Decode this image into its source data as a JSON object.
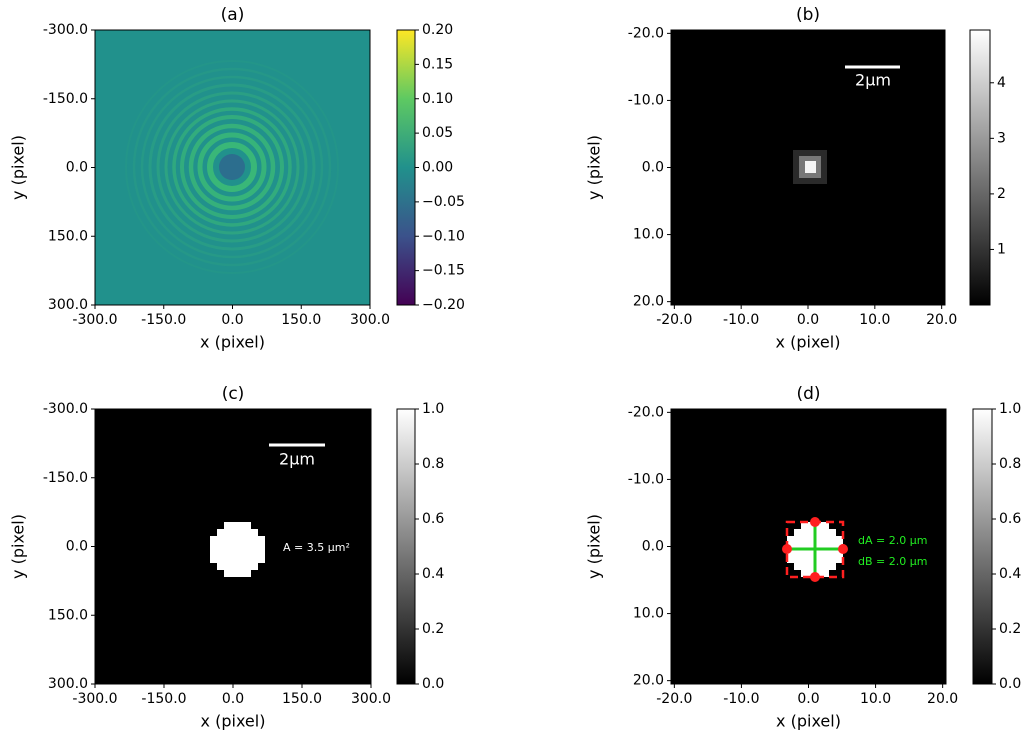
{
  "chart_data": [
    {
      "type": "image",
      "title": "(a)",
      "xlabel": "x (pixel)",
      "ylabel": "y (pixel)",
      "yinvert": true,
      "colormap": "viridis",
      "xlim": [
        -300,
        300
      ],
      "ylim": [
        -300,
        300
      ],
      "xticks": [
        {
          "value": -300,
          "label": "-300.0"
        },
        {
          "value": -150,
          "label": "-150.0"
        },
        {
          "value": 0,
          "label": "0.0"
        },
        {
          "value": 150,
          "label": "150.0"
        },
        {
          "value": 300,
          "label": "300.0"
        }
      ],
      "yticks": [
        {
          "value": -300,
          "label": "-300.0"
        },
        {
          "value": -150,
          "label": "-150.0"
        },
        {
          "value": 0,
          "label": "0.0"
        },
        {
          "value": 150,
          "label": "150.0"
        },
        {
          "value": 300,
          "label": "300.0"
        }
      ],
      "clim": [
        -0.2,
        0.2
      ],
      "cticks": [
        {
          "value": 0.2,
          "label": "0.20"
        },
        {
          "value": 0.15,
          "label": "0.15"
        },
        {
          "value": 0.1,
          "label": "0.10"
        },
        {
          "value": 0.05,
          "label": "0.05"
        },
        {
          "value": 0,
          "label": "0.00"
        },
        {
          "value": -0.05,
          "label": "−0.05"
        },
        {
          "value": -0.1,
          "label": "−0.10"
        },
        {
          "value": -0.15,
          "label": "−0.15"
        },
        {
          "value": -0.2,
          "label": "−0.20"
        }
      ]
    },
    {
      "type": "image",
      "title": "(b)",
      "xlabel": "x (pixel)",
      "ylabel": "y (pixel)",
      "yinvert": true,
      "colormap": "gray",
      "scale_bar": "2μm",
      "xlim": [
        -20.5,
        20.5
      ],
      "ylim": [
        -20.5,
        20.5
      ],
      "xticks": [
        {
          "value": -20,
          "label": "-20.0"
        },
        {
          "value": -10,
          "label": "-10.0"
        },
        {
          "value": 0,
          "label": "0.0"
        },
        {
          "value": 10,
          "label": "10.0"
        },
        {
          "value": 20,
          "label": "20.0"
        }
      ],
      "yticks": [
        {
          "value": -20,
          "label": "-20.0"
        },
        {
          "value": -10,
          "label": "-10.0"
        },
        {
          "value": 0,
          "label": "0.0"
        },
        {
          "value": 10,
          "label": "10.0"
        },
        {
          "value": 20,
          "label": "20.0"
        }
      ],
      "clim": [
        0,
        4.95
      ],
      "cticks": [
        1,
        2,
        3,
        4
      ]
    },
    {
      "type": "image",
      "title": "(c)",
      "xlabel": "x (pixel)",
      "ylabel": "y (pixel)",
      "yinvert": true,
      "colormap": "gray",
      "scale_bar": "2μm",
      "annotation": "A = 3.5 μm²",
      "xlim": [
        -300,
        300
      ],
      "ylim": [
        -300,
        300
      ],
      "xticks": [
        {
          "value": -300,
          "label": "-300.0"
        },
        {
          "value": -150,
          "label": "-150.0"
        },
        {
          "value": 0,
          "label": "0.0"
        },
        {
          "value": 150,
          "label": "150.0"
        },
        {
          "value": 300,
          "label": "300.0"
        }
      ],
      "yticks": [
        {
          "value": -300,
          "label": "-300.0"
        },
        {
          "value": -150,
          "label": "-150.0"
        },
        {
          "value": 0,
          "label": "0.0"
        },
        {
          "value": 150,
          "label": "150.0"
        },
        {
          "value": 300,
          "label": "300.0"
        }
      ],
      "clim": [
        0,
        1
      ],
      "cticks": [
        {
          "value": 0,
          "label": "0.0"
        },
        {
          "value": 0.2,
          "label": "0.2"
        },
        {
          "value": 0.4,
          "label": "0.4"
        },
        {
          "value": 0.6,
          "label": "0.6"
        },
        {
          "value": 0.8,
          "label": "0.8"
        },
        {
          "value": 1,
          "label": "1.0"
        }
      ]
    },
    {
      "type": "image",
      "title": "(d)",
      "xlabel": "x (pixel)",
      "ylabel": "y (pixel)",
      "yinvert": true,
      "colormap": "gray",
      "annotations": [
        "dA = 2.0 μm",
        "dB = 2.0 μm"
      ],
      "xlim": [
        -20.5,
        20.5
      ],
      "ylim": [
        -20.5,
        20.5
      ],
      "xticks": [
        {
          "value": -20,
          "label": "-20.0"
        },
        {
          "value": -10,
          "label": "-10.0"
        },
        {
          "value": 0,
          "label": "0.0"
        },
        {
          "value": 10,
          "label": "10.0"
        },
        {
          "value": 20,
          "label": "20.0"
        }
      ],
      "yticks": [
        {
          "value": -20,
          "label": "-20.0"
        },
        {
          "value": -10,
          "label": "-10.0"
        },
        {
          "value": 0,
          "label": "0.0"
        },
        {
          "value": 10,
          "label": "10.0"
        },
        {
          "value": 20,
          "label": "20.0"
        }
      ],
      "clim": [
        0,
        1
      ],
      "cticks": [
        {
          "value": 0,
          "label": "0.0"
        },
        {
          "value": 0.2,
          "label": "0.2"
        },
        {
          "value": 0.4,
          "label": "0.4"
        },
        {
          "value": 0.6,
          "label": "0.6"
        },
        {
          "value": 0.8,
          "label": "0.8"
        },
        {
          "value": 1,
          "label": "1.0"
        }
      ]
    }
  ]
}
